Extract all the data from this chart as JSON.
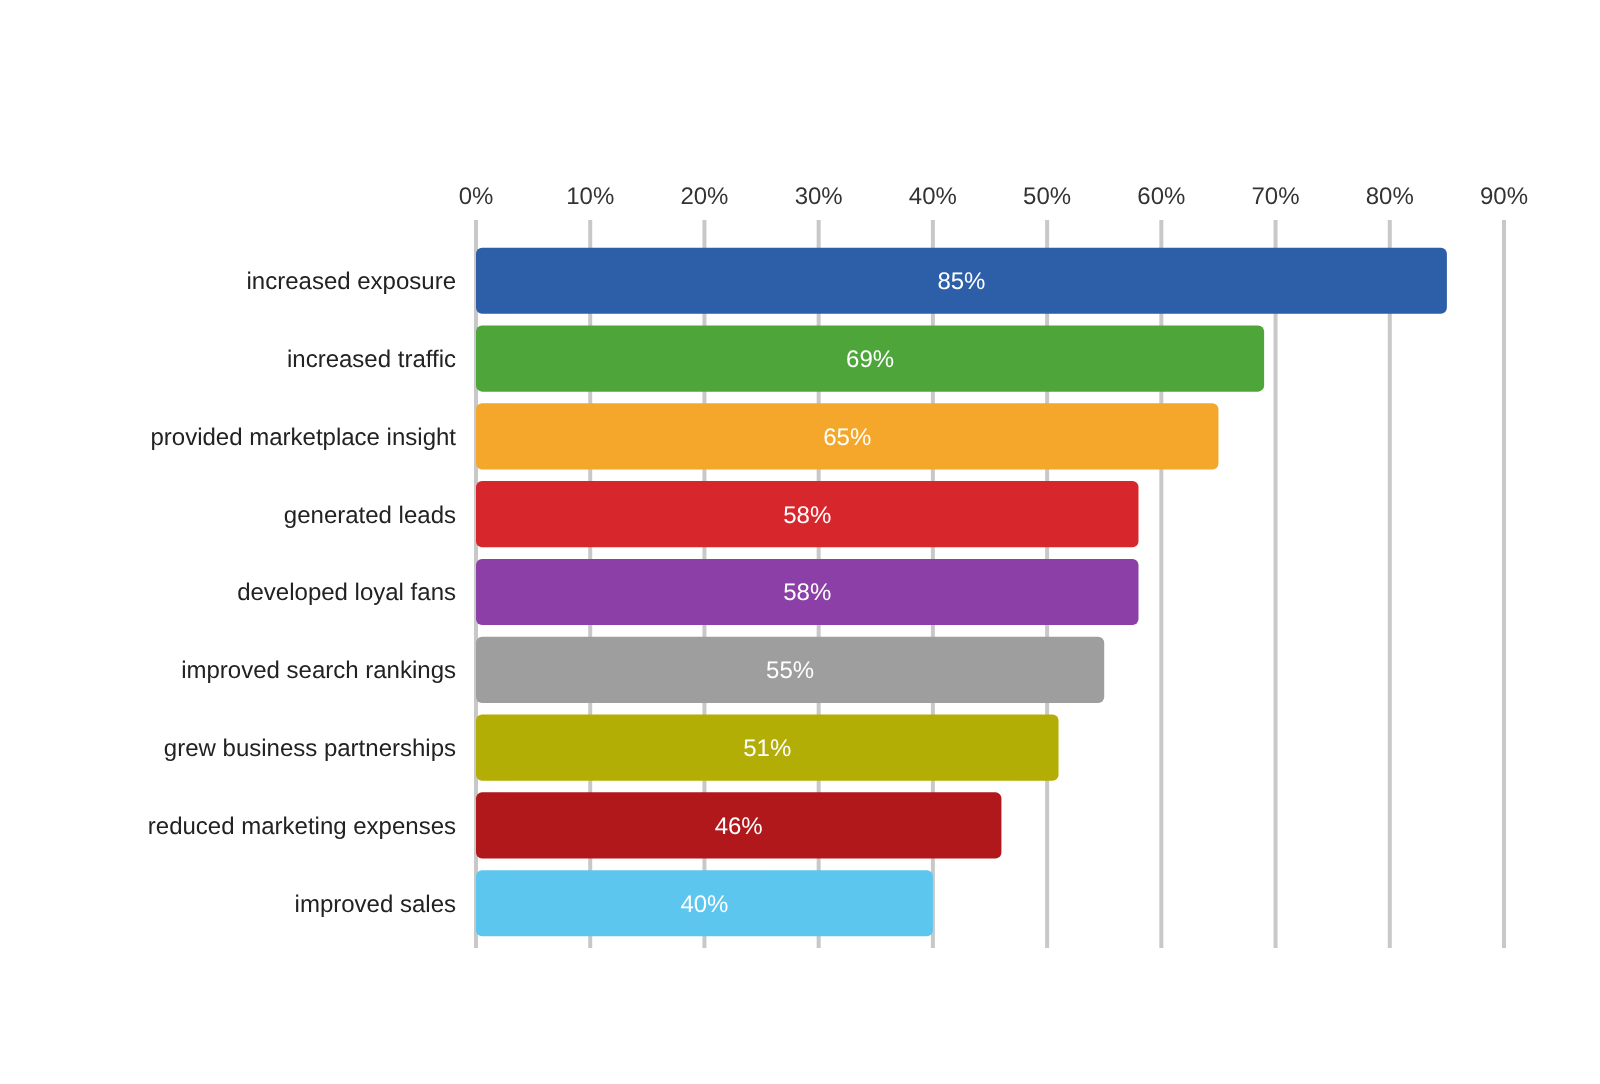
{
  "chart_data": {
    "type": "bar",
    "orientation": "horizontal",
    "categories": [
      "increased exposure",
      "increased traffic",
      "provided marketplace insight",
      "generated leads",
      "developed loyal fans",
      "improved search rankings",
      "grew business partnerships",
      "reduced marketing expenses",
      "improved sales"
    ],
    "values": [
      85,
      69,
      65,
      58,
      58,
      55,
      51,
      46,
      40
    ],
    "value_labels": [
      "85%",
      "69%",
      "65%",
      "58%",
      "58%",
      "55%",
      "51%",
      "46%",
      "40%"
    ],
    "colors": [
      "#2d5ea8",
      "#4ea63a",
      "#f4a72a",
      "#d8262d",
      "#8c3fa6",
      "#9e9e9e",
      "#b3ae05",
      "#b0181c",
      "#5cc6ef"
    ],
    "xlim": [
      0,
      90
    ],
    "xticks": [
      {
        "value": 0,
        "label": "0%"
      },
      {
        "value": 10,
        "label": "10%"
      },
      {
        "value": 20,
        "label": "20%"
      },
      {
        "value": 30,
        "label": "30%"
      },
      {
        "value": 40,
        "label": "40%"
      },
      {
        "value": 50,
        "label": "50%"
      },
      {
        "value": 60,
        "label": "60%"
      },
      {
        "value": 70,
        "label": "70%"
      },
      {
        "value": 80,
        "label": "80%"
      },
      {
        "value": 90,
        "label": "90%"
      }
    ],
    "grid": "x"
  }
}
